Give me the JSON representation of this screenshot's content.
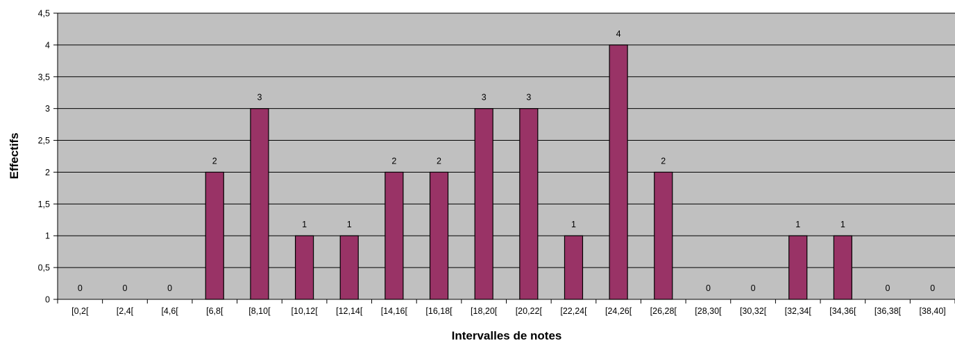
{
  "chart_data": {
    "type": "bar",
    "title": "",
    "xlabel": "Intervalles de notes",
    "ylabel": "Effectifs",
    "categories": [
      "[0,2[",
      "[2,4[",
      "[4,6[",
      "[6,8[",
      "[8,10[",
      "[10,12[",
      "[12,14[",
      "[14,16[",
      "[16,18[",
      "[18,20[",
      "[20,22[",
      "[22,24[",
      "[24,26[",
      "[26,28[",
      "[28,30[",
      "[30,32[",
      "[32,34[",
      "[34,36[",
      "[36,38[",
      "[38,40]"
    ],
    "values": [
      0,
      0,
      0,
      2,
      3,
      1,
      1,
      2,
      2,
      3,
      3,
      1,
      4,
      2,
      0,
      0,
      1,
      1,
      0,
      0
    ],
    "ylim": [
      0,
      4.5
    ],
    "yticks": [
      "0",
      "0,5",
      "1",
      "1,5",
      "2",
      "2,5",
      "3",
      "3,5",
      "4",
      "4,5"
    ],
    "data_labels": [
      "0",
      "0",
      "0",
      "2",
      "3",
      "1",
      "1",
      "2",
      "2",
      "3",
      "3",
      "1",
      "4",
      "2",
      "0",
      "0",
      "1",
      "1",
      "0",
      "0"
    ],
    "grid": true,
    "legend": "none",
    "colors": {
      "bar": "#993366",
      "plot_background": "#c0c0c0",
      "gridline": "#000000",
      "bar_border": "#000000"
    }
  }
}
